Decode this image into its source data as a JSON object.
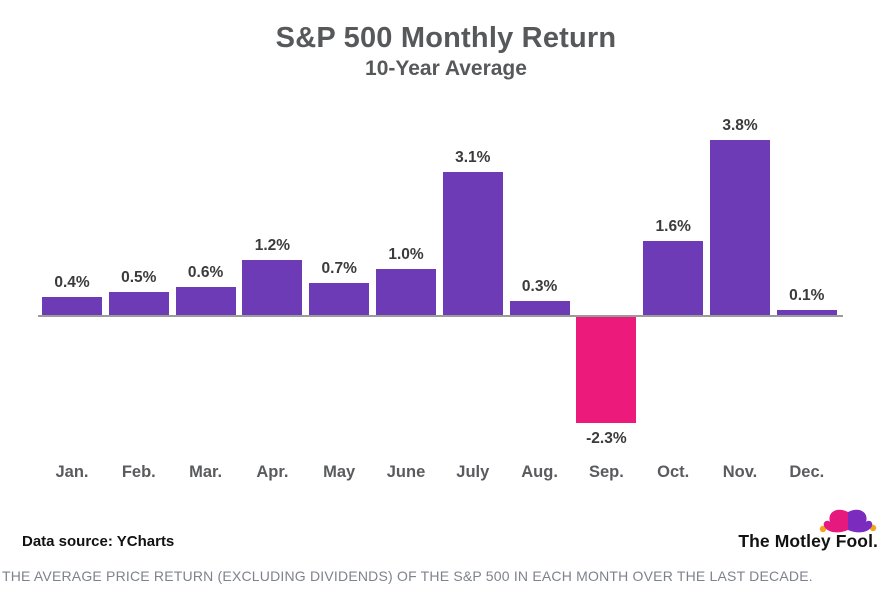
{
  "title": "S&P 500 Monthly Return",
  "subtitle": "10-Year Average",
  "chart_data": {
    "type": "bar",
    "title": "S&P 500 Monthly Return",
    "subtitle": "10-Year Average",
    "categories": [
      "Jan.",
      "Feb.",
      "Mar.",
      "Apr.",
      "May",
      "June",
      "July",
      "Aug.",
      "Sep.",
      "Oct.",
      "Nov.",
      "Dec."
    ],
    "values": [
      0.4,
      0.5,
      0.6,
      1.2,
      0.7,
      1.0,
      3.1,
      0.3,
      -2.3,
      1.6,
      3.8,
      0.1
    ],
    "labels": [
      "0.4%",
      "0.5%",
      "0.6%",
      "1.2%",
      "0.7%",
      "1.0%",
      "3.1%",
      "0.3%",
      "-2.3%",
      "1.6%",
      "3.8%",
      "0.1%"
    ],
    "unit": "%",
    "xlabel": "",
    "ylabel": "",
    "ylim": [
      -2.3,
      3.8
    ],
    "grid": false,
    "legend": "none",
    "bar_color": "#6D3BB5",
    "negative_color": "#EC1A7A"
  },
  "footer": {
    "data_source": "Data source: YCharts",
    "logo_text": "The Motley Fool."
  },
  "caption": "THE AVERAGE PRICE RETURN (EXCLUDING DIVIDENDS) OF THE S&P 500 IN EACH MONTH OVER THE LAST DECADE.",
  "colors": {
    "positive_bar": "#6D3BB5",
    "negative_bar": "#EC1A7A",
    "title_text": "#57585A",
    "value_label_text": "#3B3B3D",
    "month_label_text": "#5A5B5E",
    "axis_line": "#9B9B9B",
    "caption_text": "#7E838B",
    "hat_pink": "#E5197E",
    "hat_purple": "#7B2CBF",
    "bell_orange": "#F5A21E"
  }
}
